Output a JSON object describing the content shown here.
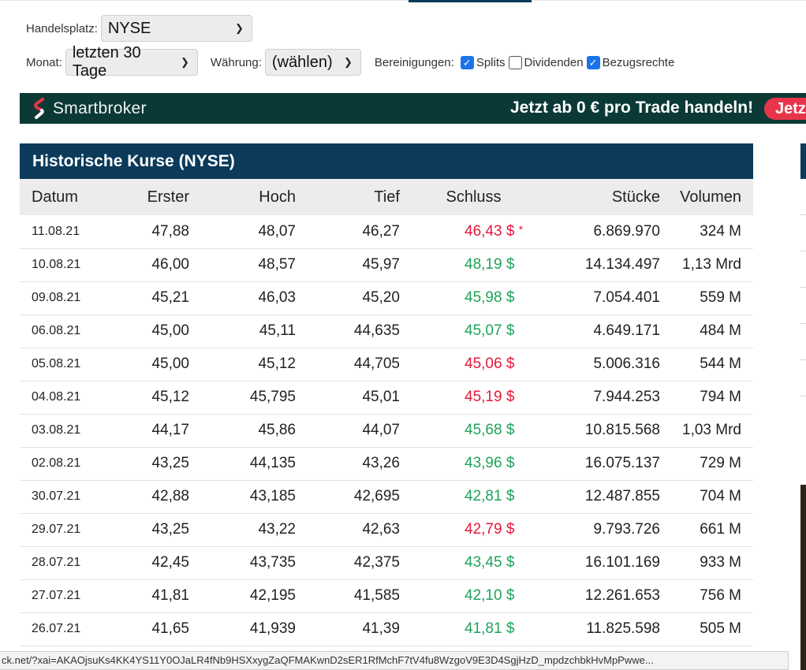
{
  "filters": {
    "exchange_label": "Handelsplatz:",
    "exchange_value": "NYSE",
    "month_label": "Monat:",
    "month_value": "letzten 30 Tage",
    "currency_label": "Währung:",
    "currency_value": "(wählen)",
    "adjustments_label": "Bereinigungen:",
    "adjustments": [
      {
        "label": "Splits",
        "checked": true
      },
      {
        "label": "Dividenden",
        "checked": false
      },
      {
        "label": "Bezugsrechte",
        "checked": true
      }
    ]
  },
  "banner": {
    "brand": "Smartbroker",
    "promo": "Jetzt ab 0 € pro Trade handeln!",
    "cta": "Jetzt"
  },
  "table": {
    "title": "Historische Kurse (NYSE)",
    "headers": [
      "Datum",
      "Erster",
      "Hoch",
      "Tief",
      "Schluss",
      "Stücke",
      "Volumen"
    ],
    "rows": [
      {
        "date": "11.08.21",
        "open": "47,88",
        "high": "48,07",
        "low": "46,27",
        "close": "46,43 $",
        "dir": "down",
        "star": "*",
        "shares": "6.869.970",
        "volume": "324 M"
      },
      {
        "date": "10.08.21",
        "open": "46,00",
        "high": "48,57",
        "low": "45,97",
        "close": "48,19 $",
        "dir": "up",
        "star": "",
        "shares": "14.134.497",
        "volume": "1,13 Mrd"
      },
      {
        "date": "09.08.21",
        "open": "45,21",
        "high": "46,03",
        "low": "45,20",
        "close": "45,98 $",
        "dir": "up",
        "star": "",
        "shares": "7.054.401",
        "volume": "559 M"
      },
      {
        "date": "06.08.21",
        "open": "45,00",
        "high": "45,11",
        "low": "44,635",
        "close": "45,07 $",
        "dir": "up",
        "star": "",
        "shares": "4.649.171",
        "volume": "484 M"
      },
      {
        "date": "05.08.21",
        "open": "45,00",
        "high": "45,12",
        "low": "44,705",
        "close": "45,06 $",
        "dir": "down",
        "star": "",
        "shares": "5.006.316",
        "volume": "544 M"
      },
      {
        "date": "04.08.21",
        "open": "45,12",
        "high": "45,795",
        "low": "45,01",
        "close": "45,19 $",
        "dir": "down",
        "star": "",
        "shares": "7.944.253",
        "volume": "794 M"
      },
      {
        "date": "03.08.21",
        "open": "44,17",
        "high": "45,86",
        "low": "44,07",
        "close": "45,68 $",
        "dir": "up",
        "star": "",
        "shares": "10.815.568",
        "volume": "1,03 Mrd"
      },
      {
        "date": "02.08.21",
        "open": "43,25",
        "high": "44,135",
        "low": "43,26",
        "close": "43,96 $",
        "dir": "up",
        "star": "",
        "shares": "16.075.137",
        "volume": "729 M"
      },
      {
        "date": "30.07.21",
        "open": "42,88",
        "high": "43,185",
        "low": "42,695",
        "close": "42,81 $",
        "dir": "up",
        "star": "",
        "shares": "12.487.855",
        "volume": "704 M"
      },
      {
        "date": "29.07.21",
        "open": "43,25",
        "high": "43,22",
        "low": "42,63",
        "close": "42,79 $",
        "dir": "down",
        "star": "",
        "shares": "9.793.726",
        "volume": "661 M"
      },
      {
        "date": "28.07.21",
        "open": "42,45",
        "high": "43,735",
        "low": "42,375",
        "close": "43,45 $",
        "dir": "up",
        "star": "",
        "shares": "16.101.169",
        "volume": "933 M"
      },
      {
        "date": "27.07.21",
        "open": "41,81",
        "high": "42,195",
        "low": "41,585",
        "close": "42,10 $",
        "dir": "up",
        "star": "",
        "shares": "12.261.653",
        "volume": "756 M"
      },
      {
        "date": "26.07.21",
        "open": "41,65",
        "high": "41,939",
        "low": "41,39",
        "close": "41,81 $",
        "dir": "up",
        "star": "",
        "shares": "11.825.598",
        "volume": "505 M"
      }
    ]
  },
  "status_bar": {
    "url": "ck.net/?xai=AKAOjsuKs4KK4YS11Y0OJaLR4fNb9HSXxygZaQFMAKwnD2sER1RfMchF7tV4fu8WzgoV9E3D4SgjHzD_mpdzchbkHvMpPwwe..."
  },
  "colors": {
    "header_bg": "#0b3a5a",
    "banner_bg": "#0b3a36",
    "up": "#1fa35a",
    "down": "#e5183b",
    "cta": "#e8344a",
    "checkbox": "#1a73e8"
  }
}
